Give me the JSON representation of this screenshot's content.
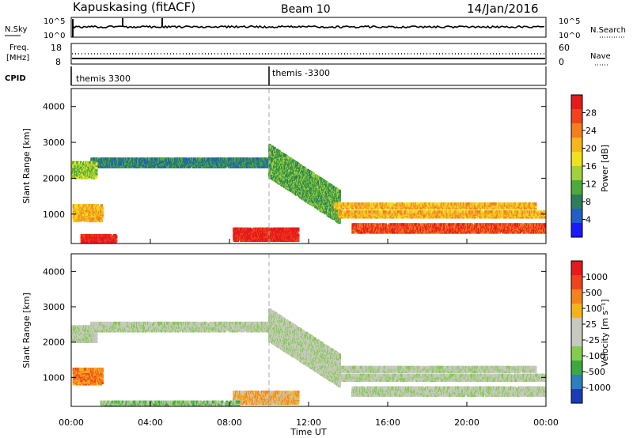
{
  "header": {
    "station": "Kapuskasing (fitACF)",
    "beam": "Beam 10",
    "date": "14/Jan/2016"
  },
  "top_panels": {
    "nsky": {
      "left_label": "N.Sky",
      "right_label": "N.Search",
      "left_ticks": [
        "10^5",
        "10^0"
      ],
      "right_ticks": [
        "10^5",
        "10^0"
      ]
    },
    "freq": {
      "left_label_line1": "Freq.",
      "left_label_line2": "[MHz]",
      "right_label": "Nave",
      "left_ticks": [
        "18",
        "8"
      ],
      "right_ticks": [
        "60",
        "0"
      ]
    },
    "cpid": {
      "label": "CPID",
      "segments": [
        {
          "label": "themis 3300",
          "start_hour": 0
        },
        {
          "label": "themis -3300",
          "start_hour": 10
        }
      ]
    }
  },
  "chart_data": [
    {
      "type": "heatmap",
      "title": "Power",
      "ylabel": "Slant Range [km]",
      "xlabel": "",
      "x_range_hours": [
        0,
        24
      ],
      "ylim": [
        180,
        4500
      ],
      "y_ticks": [
        1000,
        2000,
        3000,
        4000
      ],
      "colorbar": {
        "label": "Power [dB]",
        "ticks": [
          "4",
          "8",
          "12",
          "16",
          "20",
          "24",
          "28"
        ],
        "colors": [
          "#1a1aff",
          "#205ec8",
          "#2e7d5a",
          "#4caa3c",
          "#9fd23c",
          "#f0e020",
          "#f7b51e",
          "#f47d1e",
          "#f0421c",
          "#e41a1c"
        ]
      },
      "regions": [
        {
          "name": "band-2400",
          "start": 1.0,
          "end": 10.3,
          "range_lo": 2300,
          "range_hi": 2550,
          "level": 2
        },
        {
          "name": "band-2400-early",
          "start": 0.0,
          "end": 1.3,
          "range_lo": 2000,
          "range_hi": 2450,
          "level": 4
        },
        {
          "name": "descending-echo",
          "start": 10.0,
          "end": 13.6,
          "range_lo": 1200,
          "range_hi": 2500,
          "level": 3
        },
        {
          "name": "band-1300",
          "start": 13.3,
          "end": 23.5,
          "range_lo": 1150,
          "range_hi": 1300,
          "level": 6
        },
        {
          "name": "band-1000",
          "start": 13.5,
          "end": 24.0,
          "range_lo": 900,
          "range_hi": 1080,
          "level": 6
        },
        {
          "name": "band-600",
          "start": 14.2,
          "end": 24.0,
          "range_lo": 480,
          "range_hi": 720,
          "level": 8
        },
        {
          "name": "near-range-enhancement",
          "start": 8.2,
          "end": 11.5,
          "range_lo": 250,
          "range_hi": 600,
          "level": 9
        },
        {
          "name": "early-low-range",
          "start": 0.5,
          "end": 2.3,
          "range_lo": 200,
          "range_hi": 420,
          "level": 9
        },
        {
          "name": "early-band-1000",
          "start": 0.1,
          "end": 1.6,
          "range_lo": 800,
          "range_hi": 1250,
          "level": 6
        }
      ]
    },
    {
      "type": "heatmap",
      "title": "Velocity",
      "ylabel": "Slant Range [km]",
      "xlabel": "Time UT",
      "x_ticks": [
        "00:00",
        "04:00",
        "08:00",
        "12:00",
        "16:00",
        "20:00",
        "00:00"
      ],
      "x_range_hours": [
        0,
        24
      ],
      "ylim": [
        180,
        4500
      ],
      "y_ticks": [
        1000,
        2000,
        3000,
        4000
      ],
      "colorbar": {
        "label": "Velocity [m s⁻¹]",
        "ticks": [
          "1000",
          "500",
          "100",
          "25",
          "-25",
          "-100",
          "-500",
          "-1000"
        ],
        "colors": [
          "#1a3cb4",
          "#2f7ebd",
          "#3ba93f",
          "#83cc4e",
          "#c8c8c0",
          "#c8c8c0",
          "#f5b21e",
          "#f4821e",
          "#f0421c",
          "#e41a1c"
        ]
      },
      "regions": [
        {
          "name": "band-2400",
          "start": 1.0,
          "end": 10.3,
          "range_lo": 2300,
          "range_hi": 2550,
          "level": 4
        },
        {
          "name": "descending-echo",
          "start": 10.0,
          "end": 13.6,
          "range_lo": 1200,
          "range_hi": 2500,
          "level": 4
        },
        {
          "name": "band-1300",
          "start": 13.3,
          "end": 23.5,
          "range_lo": 1150,
          "range_hi": 1300,
          "level": 4
        },
        {
          "name": "band-1000",
          "start": 13.5,
          "end": 24.0,
          "range_lo": 900,
          "range_hi": 1080,
          "level": 4
        },
        {
          "name": "band-600",
          "start": 14.2,
          "end": 24.0,
          "range_lo": 480,
          "range_hi": 720,
          "level": 4
        },
        {
          "name": "near-range-orange",
          "start": 8.2,
          "end": 11.5,
          "range_lo": 250,
          "range_hi": 600,
          "level": 6
        },
        {
          "name": "early-orange",
          "start": 0.1,
          "end": 1.6,
          "range_lo": 800,
          "range_hi": 1250,
          "level": 7
        },
        {
          "name": "early-band-2100",
          "start": 0.0,
          "end": 1.3,
          "range_lo": 2000,
          "range_hi": 2450,
          "level": 4
        },
        {
          "name": "low-range-green",
          "start": 1.5,
          "end": 8.5,
          "range_lo": 200,
          "range_hi": 320,
          "level": 3
        }
      ]
    }
  ]
}
